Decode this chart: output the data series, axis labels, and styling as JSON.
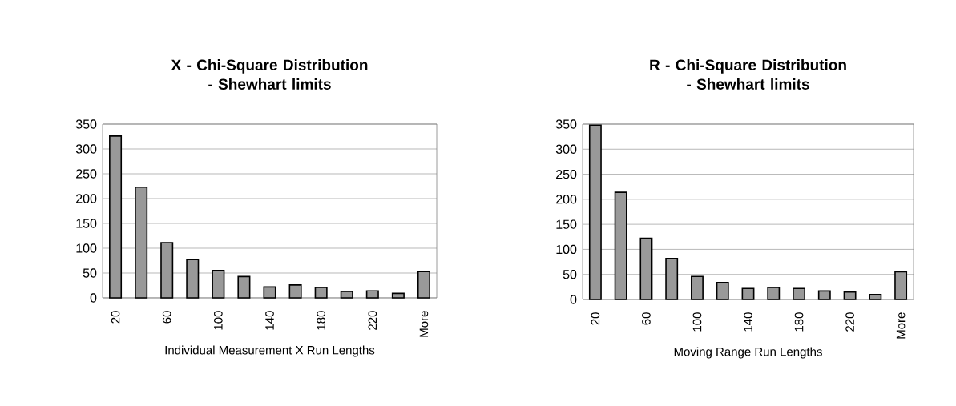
{
  "chart_data": [
    {
      "type": "bar",
      "title": "X - Chi-Square Distribution - Shewhart limits",
      "xlabel": "Individual Measurement X Run Lengths",
      "categories": [
        "20",
        null,
        "60",
        null,
        "100",
        null,
        "140",
        null,
        "180",
        null,
        "220",
        null,
        "More"
      ],
      "values": [
        326,
        223,
        111,
        77,
        55,
        43,
        22,
        26,
        21,
        13,
        14,
        9,
        53
      ],
      "color": "#999999",
      "ylim": [
        0,
        350
      ],
      "yticks": [
        0,
        50,
        100,
        150,
        200,
        250,
        300,
        350
      ],
      "grid": "y"
    },
    {
      "type": "bar",
      "title": "R - Chi-Square Distribution - Shewhart limits",
      "xlabel": "Moving Range Run Lengths",
      "categories": [
        "20",
        null,
        "60",
        null,
        "100",
        null,
        "140",
        null,
        "180",
        null,
        "220",
        null,
        "More"
      ],
      "values": [
        348,
        214,
        122,
        82,
        46,
        34,
        22,
        24,
        22,
        17,
        15,
        10,
        55
      ],
      "color": "#999999",
      "ylim": [
        0,
        350
      ],
      "yticks": [
        0,
        50,
        100,
        150,
        200,
        250,
        300,
        350
      ],
      "grid": "y"
    }
  ]
}
